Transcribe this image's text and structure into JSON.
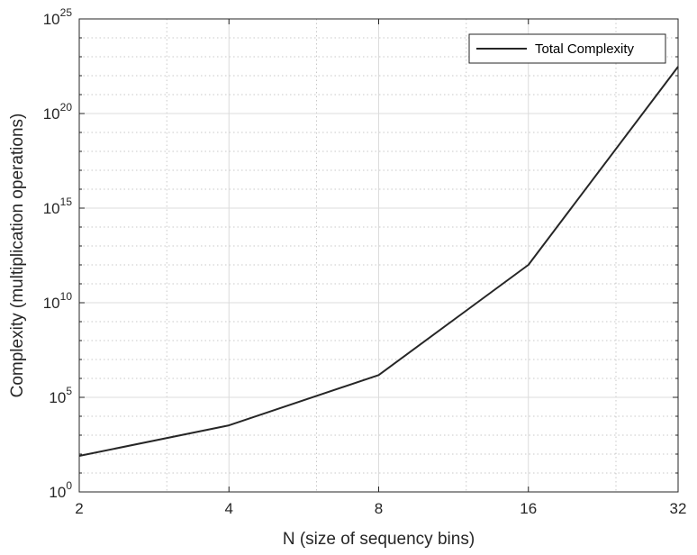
{
  "chart_data": {
    "type": "line",
    "xscale": "log2",
    "yscale": "log10",
    "x": [
      2,
      4,
      8,
      16,
      32
    ],
    "series": [
      {
        "name": "Total Complexity",
        "values": [
          80,
          3300,
          1500000,
          1000000000000.0,
          3e+22
        ]
      }
    ],
    "xlabel": "N (size of sequency bins)",
    "ylabel": "Complexity (multiplication operations)",
    "xlim": [
      2,
      32
    ],
    "ylim": [
      1,
      1e+25
    ],
    "x_ticks": [
      "2",
      "4",
      "8",
      "16",
      "32"
    ],
    "y_ticks": [
      {
        "base": "10",
        "exp": "0",
        "value": 1
      },
      {
        "base": "10",
        "exp": "5",
        "value": 100000.0
      },
      {
        "base": "10",
        "exp": "10",
        "value": 10000000000.0
      },
      {
        "base": "10",
        "exp": "15",
        "value": 1000000000000000.0
      },
      {
        "base": "10",
        "exp": "20",
        "value": 1e+20
      },
      {
        "base": "10",
        "exp": "25",
        "value": 1e+25
      }
    ],
    "grid": true,
    "minor_grid": true,
    "legend_position": "top-right",
    "colors": {
      "line": "#262626",
      "axis": "#262626",
      "grid": "#dcdcdc",
      "minor_grid": "#c8c8c8"
    }
  }
}
